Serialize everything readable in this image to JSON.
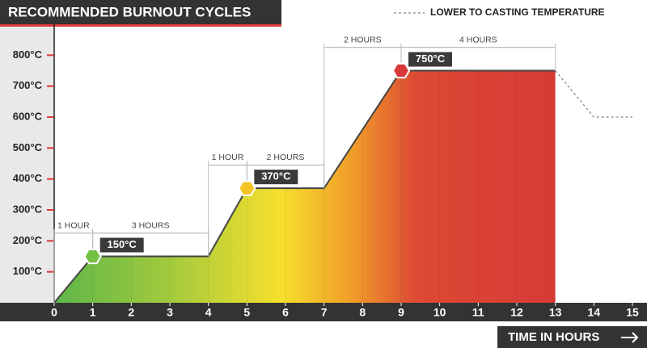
{
  "chart_data": {
    "type": "line",
    "title": "RECOMMENDED BURNOUT CYCLES",
    "x_label": "TIME IN HOURS",
    "xlim": [
      0,
      15
    ],
    "xticks": [
      0,
      1,
      2,
      3,
      4,
      5,
      6,
      7,
      8,
      9,
      10,
      11,
      12,
      13,
      14,
      15
    ],
    "ylim": [
      0,
      900
    ],
    "yticks": [
      {
        "value": 100,
        "label": "100°C"
      },
      {
        "value": 200,
        "label": "200°C"
      },
      {
        "value": 300,
        "label": "300°C"
      },
      {
        "value": 400,
        "label": "400°C"
      },
      {
        "value": 500,
        "label": "500°C"
      },
      {
        "value": 600,
        "label": "600°C"
      },
      {
        "value": 700,
        "label": "700°C"
      },
      {
        "value": 800,
        "label": "800°C"
      }
    ],
    "series": [
      {
        "color": "#444444",
        "x": [
          0,
          1,
          4,
          5,
          7,
          9,
          13
        ],
        "values": [
          0,
          150,
          150,
          370,
          370,
          750,
          750
        ],
        "filled": true
      },
      {
        "name": "LOWER TO CASTING TEMPERATURE",
        "color": "#888888",
        "dashed": true,
        "x": [
          13,
          14,
          15
        ],
        "values": [
          750,
          600,
          600
        ]
      }
    ],
    "points": {
      "x": [
        1,
        5,
        9
      ],
      "values": [
        150,
        370,
        750
      ],
      "value_labels": [
        "150°C",
        "370°C",
        "750°C"
      ],
      "colors": [
        "#76c043",
        "#f4c425",
        "#d9383a"
      ]
    },
    "spans": [
      {
        "label": "1 HOUR",
        "x": [
          0,
          1
        ],
        "y": 225
      },
      {
        "label": "3 HOURS",
        "x": [
          1,
          4
        ],
        "y": 225
      },
      {
        "label": "1 HOUR",
        "x": [
          4,
          5
        ],
        "y": 445
      },
      {
        "label": "2 HOURS",
        "x": [
          5,
          7
        ],
        "y": 445
      },
      {
        "label": "2 HOURS",
        "x": [
          7,
          9
        ],
        "y": 825
      },
      {
        "label": "4 HOURS",
        "x": [
          9,
          13
        ],
        "y": 825
      }
    ]
  }
}
